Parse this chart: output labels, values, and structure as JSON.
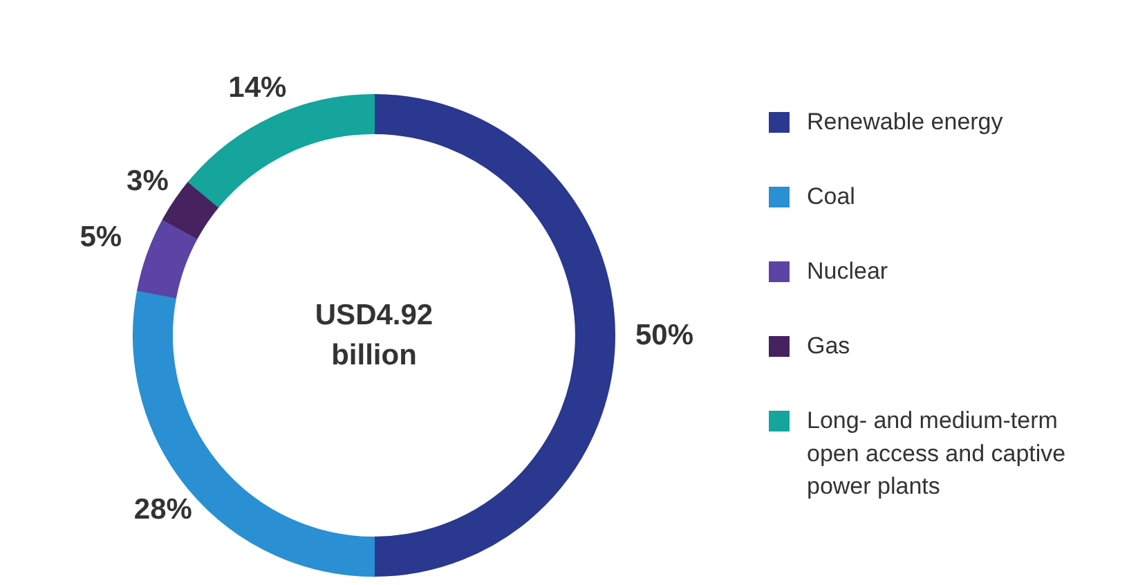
{
  "chart_data": {
    "type": "donut",
    "categories": [
      "Renewable energy",
      "Coal",
      "Nuclear",
      "Gas",
      "Long- and medium-term open access and captive power plants"
    ],
    "values": [
      50,
      28,
      5,
      3,
      14
    ],
    "colors": [
      "#2b388f",
      "#2a90d3",
      "#5b44a6",
      "#46225f",
      "#15a59c"
    ],
    "value_labels": [
      "50%",
      "28%",
      "5%",
      "3%",
      "14%"
    ],
    "annotations": [
      "USD4.92 billion"
    ],
    "legend": "right"
  }
}
